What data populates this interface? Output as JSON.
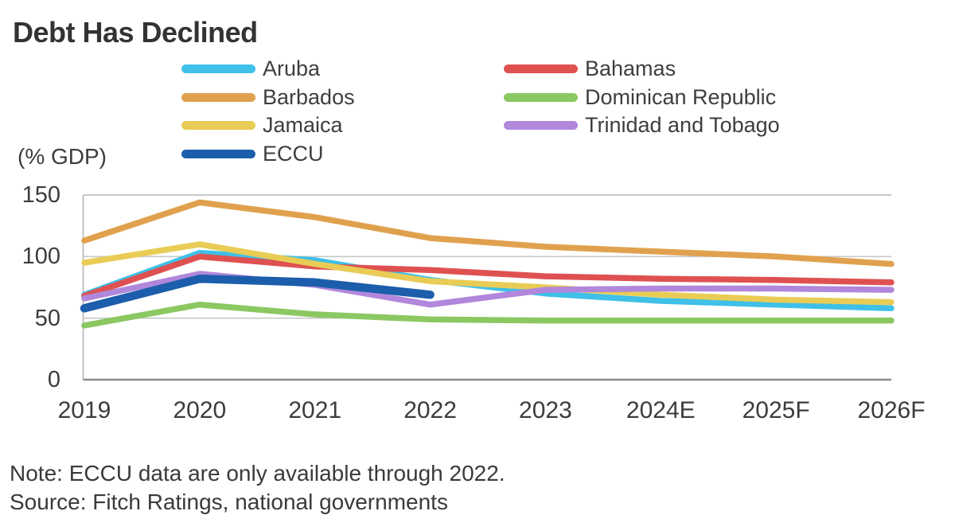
{
  "title": "Debt Has Declined",
  "y_axis_unit": "(% GDP)",
  "note": "Note: ECCU data are only available through 2022.",
  "source": "Source: Fitch Ratings, national governments",
  "chart_data": {
    "type": "line",
    "title": "Debt Has Declined",
    "ylabel": "(% GDP)",
    "x_labels": [
      "2019",
      "2020",
      "2021",
      "2022",
      "2023",
      "2024E",
      "2025F",
      "2026F"
    ],
    "ylim": [
      0,
      150
    ],
    "yticks": [
      150,
      100,
      50,
      0
    ],
    "grid": true,
    "legend_position": "top, two columns",
    "series": [
      {
        "name": "Aruba",
        "color": "#3EC0E8",
        "values": [
          69,
          103,
          97,
          81,
          70,
          64,
          61,
          58
        ]
      },
      {
        "name": "Bahamas",
        "color": "#DF5151",
        "values": [
          68,
          100,
          92,
          89,
          84,
          82,
          81,
          79
        ]
      },
      {
        "name": "Barbados",
        "color": "#E0A14E",
        "values": [
          113,
          144,
          132,
          115,
          108,
          104,
          100,
          94
        ]
      },
      {
        "name": "Dominican Republic",
        "color": "#8BC862",
        "values": [
          44,
          61,
          53,
          49,
          48,
          48,
          48,
          48
        ]
      },
      {
        "name": "Jamaica",
        "color": "#E9CC55",
        "values": [
          95,
          110,
          94,
          80,
          75,
          69,
          65,
          63
        ]
      },
      {
        "name": "Trinidad and Tobago",
        "color": "#B187DB",
        "values": [
          66,
          86,
          77,
          61,
          73,
          74,
          74,
          73
        ]
      },
      {
        "name": "ECCU",
        "color": "#1C5EAB",
        "values": [
          58,
          82,
          79,
          69,
          null,
          null,
          null,
          null
        ],
        "line_width": "thick",
        "ends_at": "2022"
      }
    ]
  }
}
